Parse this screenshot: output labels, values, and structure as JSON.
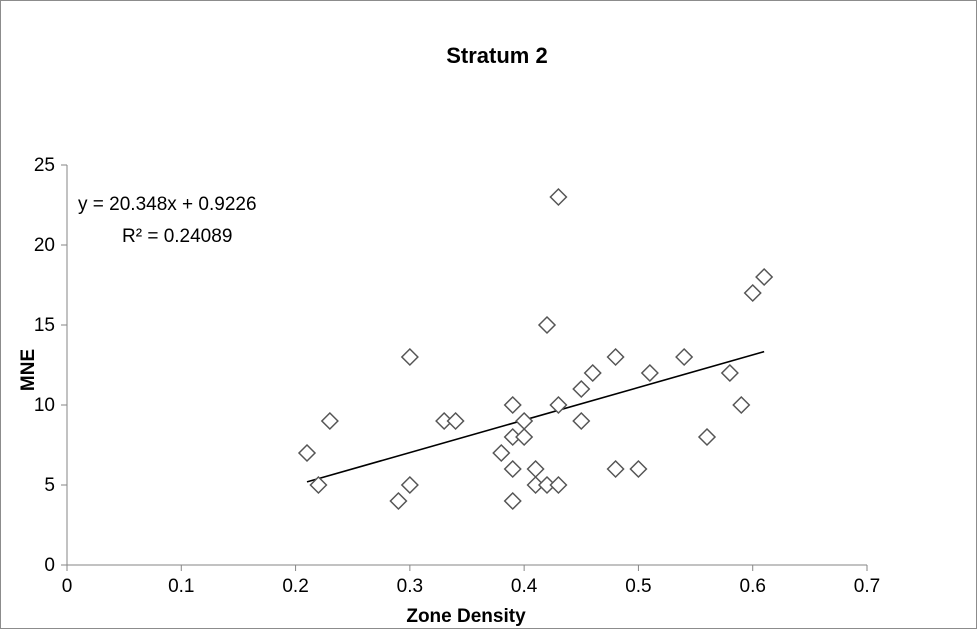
{
  "chart_data": {
    "type": "scatter",
    "title": "Stratum 2",
    "xlabel": "Zone Density",
    "ylabel": "MNE",
    "xlim": [
      0,
      0.7
    ],
    "ylim": [
      0,
      25
    ],
    "x_ticks": [
      "0",
      "0.1",
      "0.2",
      "0.3",
      "0.4",
      "0.5",
      "0.6",
      "0.7"
    ],
    "y_ticks": [
      "0",
      "5",
      "10",
      "15",
      "20",
      "25"
    ],
    "grid": false,
    "marker": "open-diamond",
    "marker_color": "#555555",
    "trendline": {
      "slope": 20.348,
      "intercept": 0.9226,
      "x_range": [
        0.21,
        0.61
      ],
      "equation": "y = 20.348x + 0.9226",
      "r_squared": "R² = 0.24089"
    },
    "points": [
      {
        "x": 0.21,
        "y": 7
      },
      {
        "x": 0.22,
        "y": 5
      },
      {
        "x": 0.23,
        "y": 9
      },
      {
        "x": 0.29,
        "y": 4
      },
      {
        "x": 0.3,
        "y": 5
      },
      {
        "x": 0.3,
        "y": 13
      },
      {
        "x": 0.33,
        "y": 9
      },
      {
        "x": 0.34,
        "y": 9
      },
      {
        "x": 0.38,
        "y": 7
      },
      {
        "x": 0.39,
        "y": 4
      },
      {
        "x": 0.39,
        "y": 6
      },
      {
        "x": 0.39,
        "y": 8
      },
      {
        "x": 0.39,
        "y": 10
      },
      {
        "x": 0.4,
        "y": 8
      },
      {
        "x": 0.4,
        "y": 9
      },
      {
        "x": 0.41,
        "y": 5
      },
      {
        "x": 0.41,
        "y": 6
      },
      {
        "x": 0.42,
        "y": 5
      },
      {
        "x": 0.42,
        "y": 15
      },
      {
        "x": 0.43,
        "y": 5
      },
      {
        "x": 0.43,
        "y": 10
      },
      {
        "x": 0.43,
        "y": 23
      },
      {
        "x": 0.45,
        "y": 9
      },
      {
        "x": 0.45,
        "y": 11
      },
      {
        "x": 0.46,
        "y": 12
      },
      {
        "x": 0.48,
        "y": 6
      },
      {
        "x": 0.48,
        "y": 13
      },
      {
        "x": 0.5,
        "y": 6
      },
      {
        "x": 0.51,
        "y": 12
      },
      {
        "x": 0.54,
        "y": 13
      },
      {
        "x": 0.56,
        "y": 8
      },
      {
        "x": 0.58,
        "y": 12
      },
      {
        "x": 0.59,
        "y": 10
      },
      {
        "x": 0.6,
        "y": 17
      },
      {
        "x": 0.61,
        "y": 18
      }
    ]
  }
}
